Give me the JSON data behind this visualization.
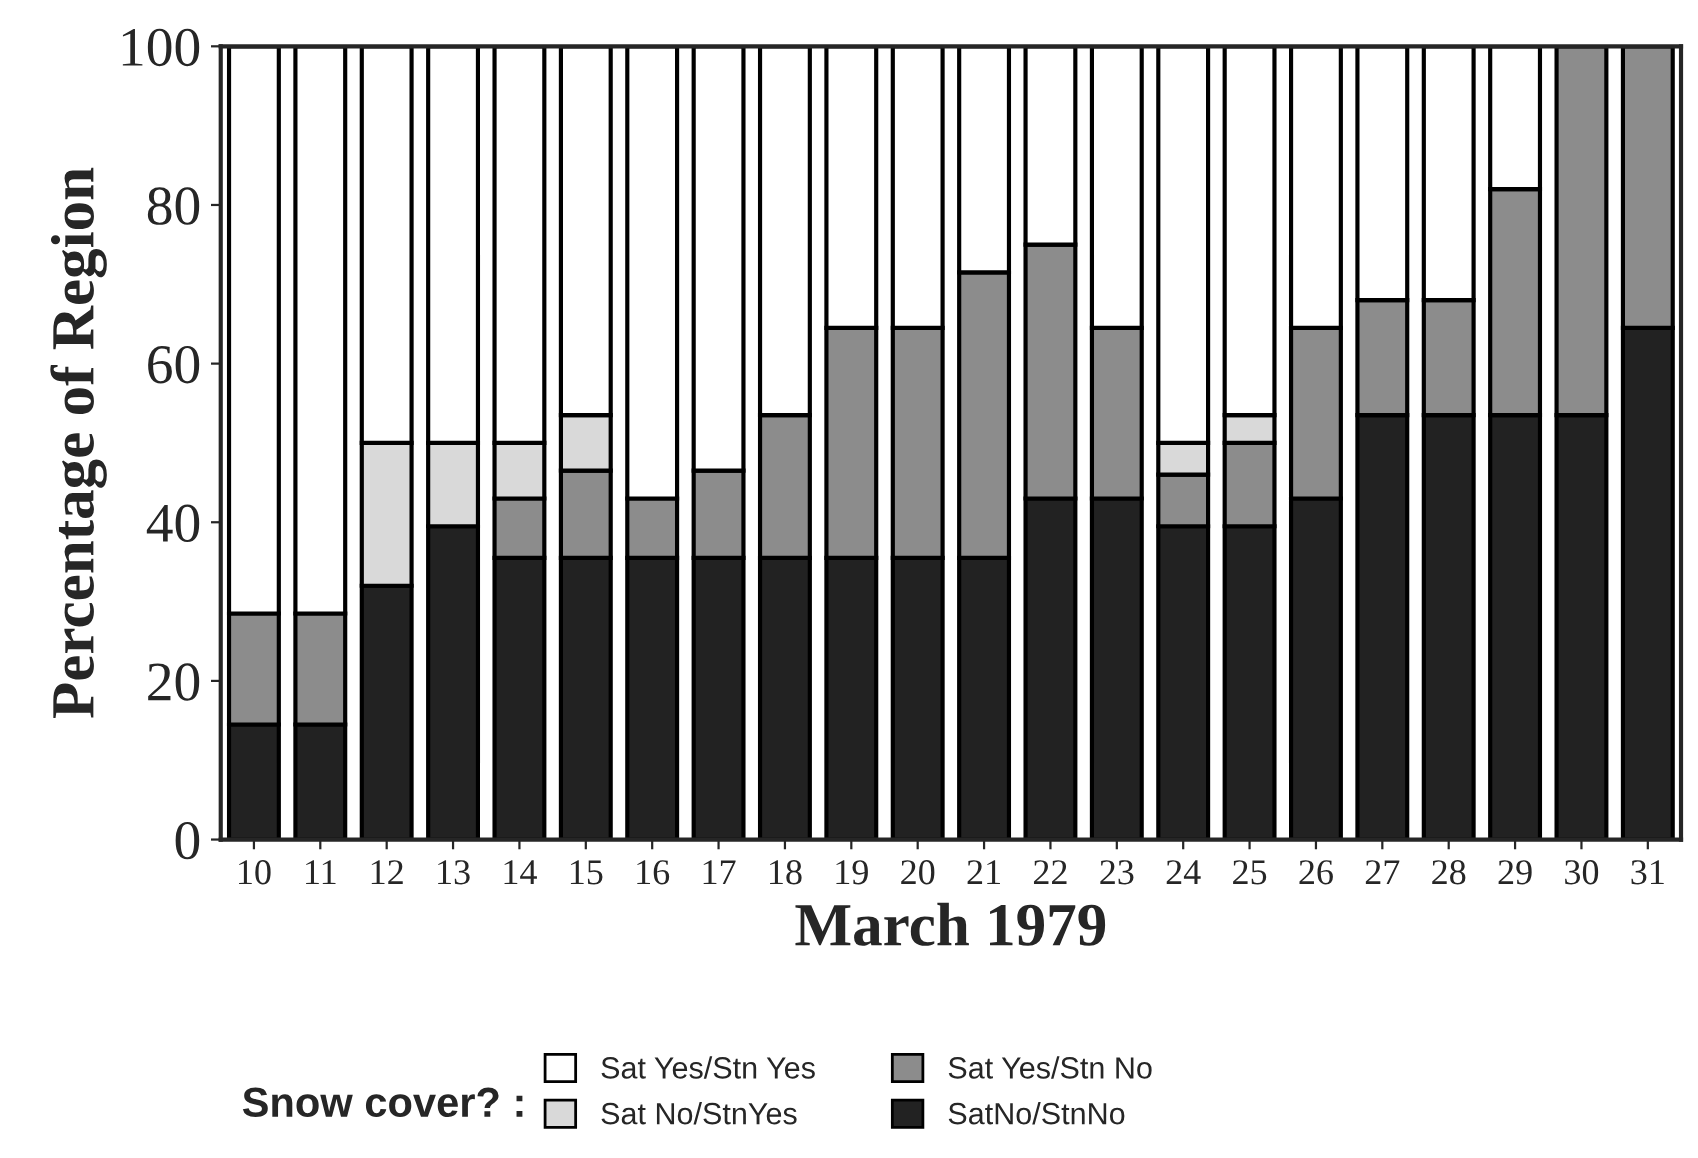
{
  "chart_data": {
    "type": "bar",
    "stacked": true,
    "xlabel": "March 1979",
    "ylabel": "Percentage of Region",
    "legend_title": "Snow cover? :",
    "categories": [
      "10",
      "11",
      "12",
      "13",
      "14",
      "15",
      "16",
      "17",
      "18",
      "19",
      "20",
      "21",
      "22",
      "23",
      "24",
      "25",
      "26",
      "27",
      "28",
      "29",
      "30",
      "31"
    ],
    "series": [
      {
        "name": "SatNo/StnNo",
        "color": "#222222",
        "values": [
          14.5,
          14.5,
          32,
          39.5,
          35.5,
          35.5,
          35.5,
          35.5,
          35.5,
          35.5,
          35.5,
          35.5,
          43,
          43,
          39.5,
          39.5,
          43,
          53.5,
          53.5,
          53.5,
          53.5,
          64.5
        ]
      },
      {
        "name": "Sat Yes/Stn No",
        "color": "#8c8c8c",
        "values": [
          14,
          14,
          0,
          0,
          7.5,
          11,
          7.5,
          11,
          18,
          29,
          29,
          36,
          32,
          21.5,
          6.5,
          10.5,
          21.5,
          14.5,
          14.5,
          28.5,
          46.5,
          35.5
        ]
      },
      {
        "name": "Sat No/StnYes",
        "color": "#d9d9d9",
        "values": [
          0,
          0,
          18,
          10.5,
          7,
          7,
          0,
          0,
          0,
          0,
          0,
          0,
          0,
          0,
          4,
          3.5,
          0,
          0,
          0,
          0,
          0,
          0
        ]
      },
      {
        "name": "Sat Yes/Stn Yes",
        "color": "#ffffff",
        "values": [
          71.5,
          71.5,
          50,
          50,
          50,
          46.5,
          57,
          53.5,
          46.5,
          35.5,
          35.5,
          28.5,
          25,
          35.5,
          50,
          46.5,
          35.5,
          32,
          32,
          18,
          0,
          0
        ]
      }
    ],
    "ylim": [
      0,
      100
    ],
    "yticks": [
      0,
      20,
      40,
      60,
      80,
      100
    ],
    "grid": false,
    "legend": "bottom"
  }
}
